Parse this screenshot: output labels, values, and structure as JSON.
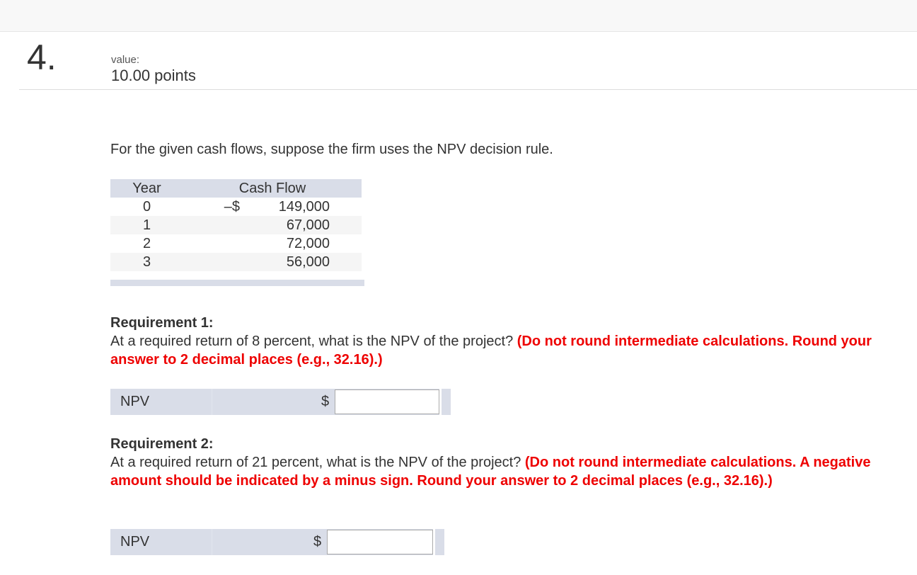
{
  "question": {
    "number": "4.",
    "value_label": "value:",
    "points": "10.00 points"
  },
  "intro": "For the given cash flows, suppose the firm uses the NPV decision rule.",
  "table": {
    "headers": [
      "Year",
      "Cash Flow"
    ],
    "rows": [
      {
        "year": "0",
        "sign": "–$",
        "amount": "149,000"
      },
      {
        "year": "1",
        "sign": "",
        "amount": "67,000"
      },
      {
        "year": "2",
        "sign": "",
        "amount": "72,000"
      },
      {
        "year": "3",
        "sign": "",
        "amount": "56,000"
      }
    ]
  },
  "req1": {
    "title": "Requirement 1:",
    "text": "At a required return of 8 percent, what is the NPV of the project? ",
    "instruction": "(Do not round intermediate calculations. Round your answer to 2 decimal places (e.g., 32.16).)",
    "label": "NPV",
    "currency": "$",
    "value": ""
  },
  "req2": {
    "title": "Requirement 2:",
    "text": "At a required return of 21 percent, what is the NPV of the project? ",
    "instruction": "(Do not round intermediate calculations. A negative amount should be indicated by a minus sign. Round your answer to 2 decimal places (e.g., 32.16).)",
    "label": "NPV",
    "currency": "$",
    "value": ""
  },
  "colors": {
    "instruction": "#ee0000",
    "table_header": "#d9dde8"
  }
}
